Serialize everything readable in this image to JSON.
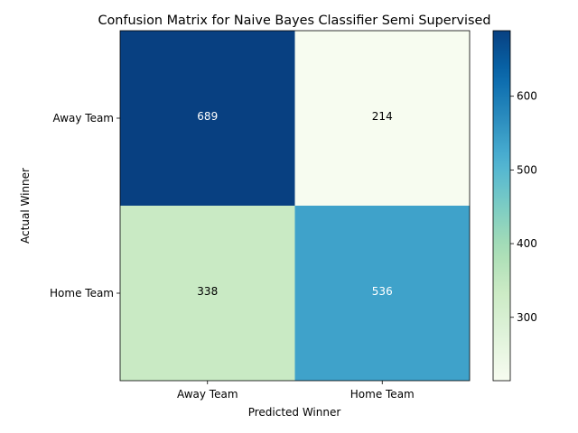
{
  "chart_data": {
    "type": "heatmap",
    "title": "Confusion Matrix for Naive Bayes Classifier Semi Supervised",
    "xlabel": "Predicted Winner",
    "ylabel": "Actual Winner",
    "x_categories": [
      "Away Team",
      "Home Team"
    ],
    "y_categories": [
      "Away Team",
      "Home Team"
    ],
    "values": [
      [
        689,
        214
      ],
      [
        338,
        536
      ]
    ],
    "colormap": "GnBu",
    "color_range": [
      214,
      689
    ],
    "colorbar_ticks": [
      300,
      400,
      500,
      600
    ],
    "colorbar_tick_labels": [
      "300",
      "400",
      "500",
      "600"
    ],
    "text_colors": {
      "dark_cell": "#ffffff",
      "light_cell": "#000000"
    }
  }
}
